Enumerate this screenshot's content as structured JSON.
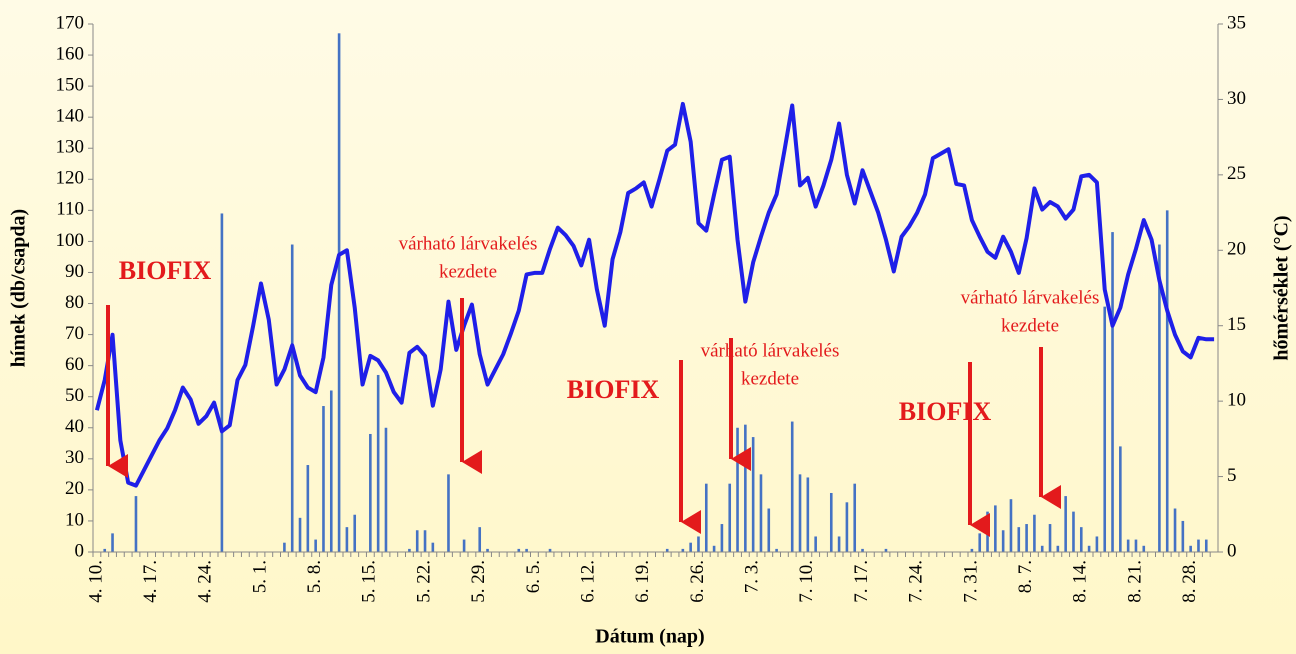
{
  "chart_data": {
    "type": "bar+line",
    "x_label": "Dátum (nap)",
    "y_label": "hímek (db/csapda)",
    "y2_label": "hőmérséklet (°C)",
    "categories": [
      "4. 10.",
      null,
      null,
      null,
      null,
      null,
      null,
      "4. 17.",
      null,
      null,
      null,
      null,
      null,
      null,
      "4. 24.",
      null,
      null,
      null,
      null,
      null,
      null,
      "5. 1.",
      null,
      null,
      null,
      null,
      null,
      null,
      "5. 8.",
      null,
      null,
      null,
      null,
      null,
      null,
      "5. 15.",
      null,
      null,
      null,
      null,
      null,
      null,
      "5. 22.",
      null,
      null,
      null,
      null,
      null,
      null,
      "5. 29.",
      null,
      null,
      null,
      null,
      null,
      null,
      "6. 5.",
      null,
      null,
      null,
      null,
      null,
      null,
      "6. 12.",
      null,
      null,
      null,
      null,
      null,
      null,
      "6. 19.",
      null,
      null,
      null,
      null,
      null,
      null,
      "6. 26.",
      null,
      null,
      null,
      null,
      null,
      null,
      "7. 3.",
      null,
      null,
      null,
      null,
      null,
      null,
      "7. 10.",
      null,
      null,
      null,
      null,
      null,
      null,
      "7. 17.",
      null,
      null,
      null,
      null,
      null,
      null,
      "7. 24.",
      null,
      null,
      null,
      null,
      null,
      null,
      "7. 31.",
      null,
      null,
      null,
      null,
      null,
      null,
      "8. 7.",
      null,
      null,
      null,
      null,
      null,
      null,
      "8. 14.",
      null,
      null,
      null,
      null,
      null,
      null,
      "8. 21.",
      null,
      null,
      null,
      null,
      null,
      null,
      "8. 28.",
      null,
      null,
      null
    ],
    "series": [
      {
        "name": "hímek",
        "type": "bar",
        "color": "#4472c4",
        "values": [
          0,
          1,
          6,
          0,
          0,
          18,
          0,
          0,
          0,
          0,
          0,
          0,
          0,
          0,
          0,
          0,
          109,
          0,
          0,
          0,
          0,
          0,
          0,
          0,
          3,
          99,
          11,
          28,
          4,
          47,
          52,
          167,
          8,
          12,
          0,
          38,
          57,
          40,
          0,
          0,
          1,
          7,
          7,
          3,
          0,
          25,
          0,
          4,
          0,
          8,
          1,
          0,
          0,
          0,
          1,
          1,
          0,
          0,
          1,
          0,
          0,
          0,
          0,
          0,
          0,
          0,
          0,
          0,
          0,
          0,
          0,
          0,
          0,
          1,
          0,
          1,
          3,
          5,
          22,
          2,
          9,
          22,
          40,
          41,
          37,
          25,
          14,
          1,
          0,
          42,
          25,
          24,
          5,
          0,
          19,
          5,
          16,
          22,
          1,
          0,
          0,
          1,
          0,
          0,
          0,
          0,
          0,
          0,
          0,
          0,
          0,
          0,
          1,
          6,
          13,
          15,
          7,
          17,
          8,
          9,
          12,
          2,
          9,
          2,
          18,
          13,
          8,
          2,
          5,
          79,
          103,
          34,
          4,
          4,
          2,
          0,
          99,
          110,
          14,
          10,
          2,
          4,
          4,
          0
        ]
      },
      {
        "name": "hőmérséklet",
        "type": "line",
        "axis": "y2",
        "color": "#1f1fe8",
        "values": [
          9.4,
          11.4,
          14.4,
          7.4,
          4.6,
          4.4,
          5.4,
          6.4,
          7.4,
          8.2,
          9.4,
          10.9,
          10.1,
          8.5,
          9.0,
          9.9,
          8.0,
          8.4,
          11.4,
          12.4,
          15.0,
          17.8,
          15.4,
          11.1,
          12.1,
          13.7,
          11.7,
          10.9,
          10.6,
          12.9,
          17.7,
          19.7,
          20.0,
          16.2,
          11.1,
          13.0,
          12.7,
          11.9,
          10.6,
          9.9,
          13.2,
          13.6,
          13.0,
          9.7,
          12.1,
          16.6,
          13.4,
          15.0,
          16.4,
          13.1,
          11.1,
          12.1,
          13.1,
          14.5,
          16.0,
          18.4,
          18.5,
          18.5,
          20.1,
          21.5,
          21.0,
          20.3,
          19.0,
          20.7,
          17.4,
          15.0,
          19.4,
          21.2,
          23.8,
          24.1,
          24.5,
          22.9,
          24.7,
          26.6,
          27.0,
          29.7,
          27.2,
          21.8,
          21.3,
          23.7,
          26.0,
          26.2,
          20.7,
          16.6,
          19.2,
          20.9,
          22.5,
          23.7,
          26.6,
          29.6,
          24.3,
          24.8,
          22.9,
          24.3,
          26.0,
          28.4,
          25.0,
          23.1,
          25.3,
          23.9,
          22.5,
          20.7,
          18.6,
          20.9,
          21.6,
          22.5,
          23.7,
          26.1,
          26.4,
          26.7,
          24.4,
          24.3,
          22.0,
          20.9,
          19.9,
          19.5,
          20.9,
          19.9,
          18.5,
          20.8,
          24.1,
          22.7,
          23.2,
          22.9,
          22.1,
          22.7,
          24.9,
          25.0,
          24.5,
          17.4,
          15.0,
          16.2,
          18.4,
          20.1,
          22.0,
          20.7,
          18.0,
          16.0,
          14.4,
          13.3,
          12.9,
          14.2,
          14.1,
          14.1
        ]
      }
    ],
    "ylim": [
      0,
      170
    ],
    "yticks": [
      0,
      10,
      20,
      30,
      40,
      50,
      60,
      70,
      80,
      90,
      100,
      110,
      120,
      130,
      140,
      150,
      160,
      170
    ],
    "y2lim": [
      0,
      35
    ],
    "y2ticks": [
      0,
      5,
      10,
      15,
      20,
      25,
      30,
      35
    ],
    "annotations": [
      {
        "lines": [
          "BIOFIX"
        ]
      },
      {
        "lines": [
          "várható lárvakelés",
          "kezdete"
        ]
      },
      {
        "lines": [
          "BIOFIX"
        ]
      },
      {
        "lines": [
          "várható lárvakelés",
          "kezdete"
        ]
      },
      {
        "lines": [
          "BIOFIX"
        ]
      },
      {
        "lines": [
          "várható lárvakelés",
          "kezdete"
        ]
      }
    ]
  }
}
